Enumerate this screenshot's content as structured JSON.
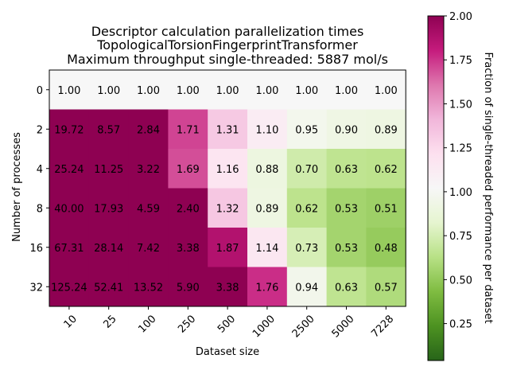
{
  "chart_data": {
    "type": "heatmap",
    "title_lines": [
      "Descriptor calculation parallelization times",
      "TopologicalTorsionFingerprintTransformer",
      "Maximum throughput single-threaded: 5887 mol/s"
    ],
    "xlabel": "Dataset size",
    "ylabel": "Number of processes",
    "x_categories": [
      "10",
      "25",
      "100",
      "250",
      "500",
      "1000",
      "2500",
      "5000",
      "7228"
    ],
    "y_categories": [
      "0",
      "2",
      "4",
      "8",
      "16",
      "32"
    ],
    "values": [
      [
        1.0,
        1.0,
        1.0,
        1.0,
        1.0,
        1.0,
        1.0,
        1.0,
        1.0
      ],
      [
        19.72,
        8.57,
        2.84,
        1.71,
        1.31,
        1.1,
        0.95,
        0.9,
        0.89
      ],
      [
        25.24,
        11.25,
        3.22,
        1.69,
        1.16,
        0.88,
        0.7,
        0.63,
        0.62
      ],
      [
        40.0,
        17.93,
        4.59,
        2.4,
        1.32,
        0.89,
        0.62,
        0.53,
        0.51
      ],
      [
        67.31,
        28.14,
        7.42,
        3.38,
        1.87,
        1.14,
        0.73,
        0.53,
        0.48
      ],
      [
        125.24,
        52.41,
        13.52,
        5.9,
        3.38,
        1.76,
        0.94,
        0.63,
        0.57
      ]
    ],
    "cell_labels": [
      [
        "1.00",
        "1.00",
        "1.00",
        "1.00",
        "1.00",
        "1.00",
        "1.00",
        "1.00",
        "1.00"
      ],
      [
        "19.72",
        "8.57",
        "2.84",
        "1.71",
        "1.31",
        "1.10",
        "0.95",
        "0.90",
        "0.89"
      ],
      [
        "25.24",
        "11.25",
        "3.22",
        "1.69",
        "1.16",
        "0.88",
        "0.70",
        "0.63",
        "0.62"
      ],
      [
        "40.00",
        "17.93",
        "4.59",
        "2.40",
        "1.32",
        "0.89",
        "0.62",
        "0.53",
        "0.51"
      ],
      [
        "67.31",
        "28.14",
        "7.42",
        "3.38",
        "1.87",
        "1.14",
        "0.73",
        "0.53",
        "0.48"
      ],
      [
        "125.24",
        "52.41",
        "13.52",
        "5.90",
        "3.38",
        "1.76",
        "0.94",
        "0.63",
        "0.57"
      ]
    ],
    "colormap": "PiYG",
    "color_range": [
      0,
      2
    ],
    "colorbar": {
      "label": "Fraction of single-threaded performance per dataset",
      "ticks": [
        "0.25",
        "0.50",
        "0.75",
        "1.00",
        "1.25",
        "1.50",
        "1.75",
        "2.00"
      ],
      "tick_values": [
        0.25,
        0.5,
        0.75,
        1.0,
        1.25,
        1.5,
        1.75,
        2.0
      ]
    },
    "grid": false,
    "legend": "none"
  }
}
